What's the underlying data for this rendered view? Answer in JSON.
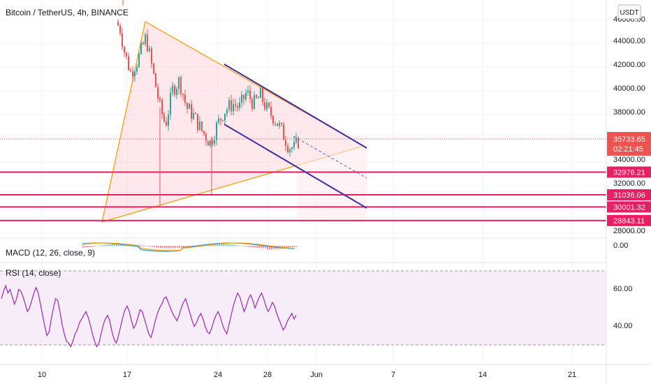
{
  "header": {
    "symbol_title": "Bitcoin / TetherUS, 4h, BINANCE",
    "currency_button": "USDT"
  },
  "price_axis": {
    "ticks": [
      "46000.00",
      "44000.00",
      "42000.00",
      "40000.00",
      "38000.00",
      "34000.00",
      "32000.00",
      "28000.00"
    ],
    "current_price": "35733.65",
    "countdown": "02:21:45",
    "level_labels": [
      "32976.21",
      "31036.06",
      "30001.32",
      "28843.11"
    ]
  },
  "macd": {
    "label": "MACD (12, 26, close, 9)",
    "zero_tick": "0.00"
  },
  "rsi": {
    "label": "RSI (14, close)",
    "ticks": [
      "60.00",
      "40.00"
    ]
  },
  "time_axis": {
    "ticks": [
      "10",
      "17",
      "24",
      "28",
      "Jun",
      "7",
      "14",
      "21"
    ]
  },
  "colors": {
    "candle_up": "#26a69a",
    "candle_down": "#ef5350",
    "horizontal_levels": "#e91e63",
    "triangle_line": "#ff9800",
    "triangle_fill": "#ffcdd2",
    "channel_line": "#3f2fa0",
    "rsi_line": "#9c27b0",
    "rsi_band": "#f3e5f5",
    "macd_line": "#2196f3",
    "signal_line": "#ff9800"
  },
  "chart_data": {
    "type": "candlestick",
    "symbol": "BTCUSDT",
    "interval": "4h",
    "exchange": "BINANCE",
    "price_range": [
      27500,
      46800
    ],
    "last_price": 35733.65,
    "horizontal_levels": [
      32976.21,
      31036.06,
      30001.32,
      28843.11
    ],
    "rsi_levels": [
      70,
      30
    ],
    "rsi_range": [
      22,
      78
    ],
    "rsi_series": [
      55,
      59,
      62,
      58,
      60,
      56,
      52,
      55,
      60,
      59,
      56,
      52,
      48,
      50,
      54,
      58,
      61,
      58,
      52,
      46,
      40,
      35,
      37,
      44,
      50,
      55,
      54,
      48,
      41,
      36,
      32,
      31,
      29,
      32,
      36,
      38,
      42,
      44,
      46,
      48,
      45,
      41,
      36,
      32,
      29,
      31,
      36,
      41,
      44,
      46,
      43,
      37,
      33,
      31,
      35,
      40,
      45,
      49,
      51,
      48,
      43,
      39,
      41,
      45,
      49,
      48,
      44,
      40,
      36,
      34,
      38,
      43,
      47,
      50,
      52,
      55,
      56,
      53,
      50,
      47,
      45,
      43,
      46,
      50,
      53,
      55,
      51,
      47,
      43,
      40,
      42,
      45,
      47,
      44,
      40,
      37,
      36,
      39,
      43,
      46,
      48,
      45,
      41,
      38,
      36,
      41,
      46,
      51,
      55,
      58,
      56,
      52,
      48,
      51,
      55,
      57,
      54,
      50,
      53,
      56,
      58,
      55,
      51,
      48,
      50,
      53,
      51,
      47,
      44,
      41,
      38,
      40,
      43,
      45,
      47,
      44,
      46
    ]
  }
}
